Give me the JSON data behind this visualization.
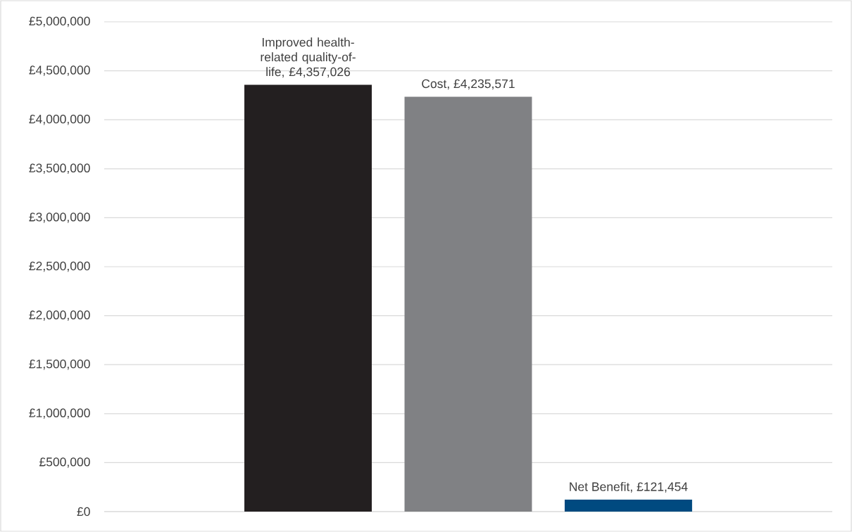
{
  "chart_data": {
    "type": "bar",
    "categories": [
      null
    ],
    "series": [
      {
        "color": "#231f20",
        "values": [
          4357026
        ],
        "value_labels": [
          "Improved health-related quality-of-life, £4,357,026"
        ]
      },
      {
        "color": "#808184",
        "values": [
          4235571
        ],
        "value_labels": [
          "Cost, £4,235,571"
        ]
      },
      {
        "color": "#004a80",
        "values": [
          121454
        ],
        "value_labels": [
          "Net Benefit, £121,454"
        ]
      }
    ],
    "ylim": [
      0,
      5000000
    ],
    "yticks": [
      {
        "value": 0,
        "label": "£0"
      },
      {
        "value": 500000,
        "label": "£500,000"
      },
      {
        "value": 1000000,
        "label": "£1,000,000"
      },
      {
        "value": 1500000,
        "label": "£1,500,000"
      },
      {
        "value": 2000000,
        "label": "£2,000,000"
      },
      {
        "value": 2500000,
        "label": "£2,500,000"
      },
      {
        "value": 3000000,
        "label": "£3,000,000"
      },
      {
        "value": 3500000,
        "label": "£3,500,000"
      },
      {
        "value": 4000000,
        "label": "£4,000,000"
      },
      {
        "value": 4500000,
        "label": "£4,500,000"
      },
      {
        "value": 5000000,
        "label": "£5,000,000"
      }
    ],
    "grid": "y"
  }
}
